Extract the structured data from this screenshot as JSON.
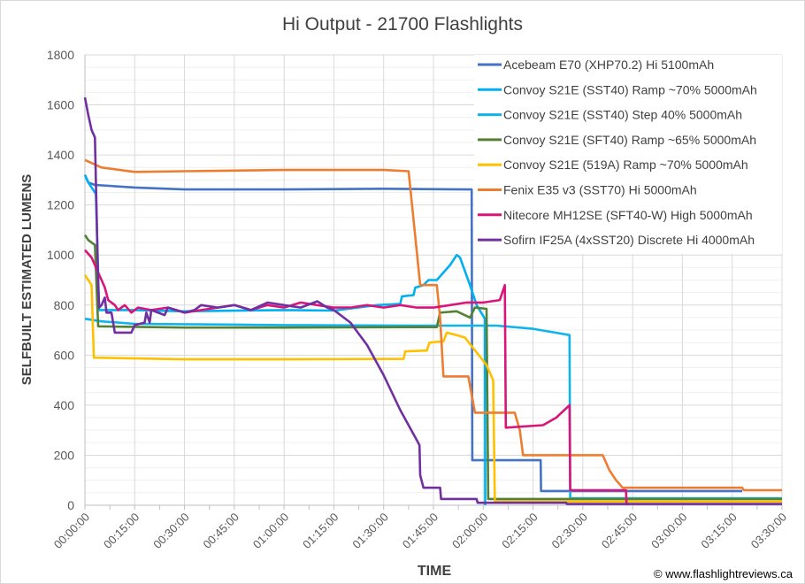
{
  "chart_data": {
    "type": "line",
    "title": "Hi Output - 21700 Flashlights",
    "xlabel": "TIME",
    "ylabel": "SELFBUILT ESTIMATED LUMENS",
    "x_unit": "minutes",
    "xlim": [
      0,
      210
    ],
    "ylim": [
      0,
      1800
    ],
    "y_ticks": [
      0,
      200,
      400,
      600,
      800,
      1000,
      1200,
      1400,
      1600,
      1800
    ],
    "x_tick_values": [
      0,
      15,
      30,
      45,
      60,
      75,
      90,
      105,
      120,
      135,
      150,
      165,
      180,
      195,
      210
    ],
    "x_tick_labels": [
      "00:00:00",
      "00:15:00",
      "00:30:00",
      "00:45:00",
      "01:00:00",
      "01:15:00",
      "01:30:00",
      "01:45:00",
      "02:00:00",
      "02:15:00",
      "02:30:00",
      "02:45:00",
      "03:00:00",
      "03:15:00",
      "03:30:00"
    ],
    "grid": true,
    "legend_position": "top-right",
    "credit": "© www.flashlightreviews.ca",
    "series": [
      {
        "name": "Acebeam E70 (XHP70.2) Hi 5100mAh",
        "color": "#4472C4",
        "points": [
          [
            0,
            1320
          ],
          [
            1,
            1290
          ],
          [
            3,
            1280
          ],
          [
            15,
            1270
          ],
          [
            30,
            1262
          ],
          [
            60,
            1262
          ],
          [
            90,
            1265
          ],
          [
            116.5,
            1262
          ],
          [
            116.7,
            180
          ],
          [
            137.3,
            180
          ],
          [
            137.4,
            57
          ],
          [
            198,
            57
          ]
        ]
      },
      {
        "name": "Convoy S21E (SST40) Ramp ~70% 5000mAh",
        "color": "#00B0F0",
        "points": [
          [
            0,
            1320
          ],
          [
            1,
            1290
          ],
          [
            3,
            1250
          ],
          [
            3.3,
            1245
          ],
          [
            4.3,
            780
          ],
          [
            15,
            780
          ],
          [
            30,
            775
          ],
          [
            60,
            780
          ],
          [
            75,
            778
          ],
          [
            88,
            800
          ],
          [
            95,
            805
          ],
          [
            95.5,
            835
          ],
          [
            99,
            840
          ],
          [
            99.5,
            870
          ],
          [
            102,
            880
          ],
          [
            103.5,
            900
          ],
          [
            106,
            900
          ],
          [
            108,
            930
          ],
          [
            110,
            960
          ],
          [
            112,
            1000
          ],
          [
            113,
            990
          ],
          [
            116,
            880
          ],
          [
            118,
            800
          ],
          [
            120.5,
            745
          ],
          [
            120.6,
            0
          ]
        ]
      },
      {
        "name": "Convoy S21E (SST40) Step 40% 5000mAh",
        "color": "#0FB4EC",
        "points": [
          [
            0,
            745
          ],
          [
            5,
            735
          ],
          [
            15,
            725
          ],
          [
            60,
            720
          ],
          [
            100,
            718
          ],
          [
            124,
            718
          ],
          [
            135,
            705
          ],
          [
            146,
            680
          ],
          [
            146.2,
            28
          ],
          [
            210,
            28
          ]
        ]
      },
      {
        "name": "Convoy S21E (SFT40) Ramp ~65% 5000mAh",
        "color": "#548235",
        "points": [
          [
            0,
            1080
          ],
          [
            1,
            1060
          ],
          [
            3,
            1040
          ],
          [
            4,
            715
          ],
          [
            30,
            710
          ],
          [
            60,
            710
          ],
          [
            100,
            712
          ],
          [
            106,
            712
          ],
          [
            107,
            770
          ],
          [
            112,
            775
          ],
          [
            116,
            750
          ],
          [
            117.5,
            790
          ],
          [
            121,
            785
          ],
          [
            121.5,
            25
          ],
          [
            210,
            25
          ]
        ]
      },
      {
        "name": "Convoy S21E (519A) Ramp ~70% 5000mAh",
        "color": "#FFC000",
        "points": [
          [
            0,
            920
          ],
          [
            1,
            900
          ],
          [
            2,
            880
          ],
          [
            2.7,
            590
          ],
          [
            30,
            583
          ],
          [
            60,
            583
          ],
          [
            96,
            585
          ],
          [
            96.5,
            615
          ],
          [
            103,
            618
          ],
          [
            103.8,
            650
          ],
          [
            108,
            655
          ],
          [
            109,
            690
          ],
          [
            112,
            680
          ],
          [
            114.5,
            670
          ],
          [
            121,
            560
          ],
          [
            123,
            500
          ],
          [
            123.5,
            15
          ],
          [
            210,
            15
          ]
        ]
      },
      {
        "name": "Fenix E35 v3 (SST70) Hi 5000mAh",
        "color": "#ED7D31",
        "points": [
          [
            0,
            1380
          ],
          [
            5,
            1350
          ],
          [
            15,
            1332
          ],
          [
            30,
            1335
          ],
          [
            60,
            1340
          ],
          [
            90,
            1340
          ],
          [
            97.5,
            1335
          ],
          [
            101,
            880
          ],
          [
            106,
            880
          ],
          [
            107,
            750
          ],
          [
            108,
            515
          ],
          [
            115.5,
            515
          ],
          [
            117.5,
            370
          ],
          [
            129.5,
            370
          ],
          [
            131,
            300
          ],
          [
            132,
            200
          ],
          [
            156,
            200
          ],
          [
            158,
            140
          ],
          [
            160,
            100
          ],
          [
            162,
            70
          ],
          [
            198,
            70
          ],
          [
            198.5,
            60
          ],
          [
            210,
            60
          ]
        ]
      },
      {
        "name": "Nitecore MH12SE (SFT40-W) High 5000mAh",
        "color": "#D9157A",
        "points": [
          [
            0,
            1020
          ],
          [
            2,
            990
          ],
          [
            4,
            930
          ],
          [
            5,
            900
          ],
          [
            6,
            870
          ],
          [
            7,
            820
          ],
          [
            9,
            800
          ],
          [
            10,
            780
          ],
          [
            12,
            800
          ],
          [
            14,
            770
          ],
          [
            16,
            790
          ],
          [
            20,
            780
          ],
          [
            25,
            790
          ],
          [
            30,
            770
          ],
          [
            35,
            780
          ],
          [
            40,
            790
          ],
          [
            45,
            800
          ],
          [
            50,
            780
          ],
          [
            55,
            800
          ],
          [
            60,
            790
          ],
          [
            65,
            810
          ],
          [
            70,
            800
          ],
          [
            75,
            790
          ],
          [
            80,
            790
          ],
          [
            85,
            800
          ],
          [
            90,
            790
          ],
          [
            95,
            800
          ],
          [
            100,
            790
          ],
          [
            105,
            790
          ],
          [
            110,
            800
          ],
          [
            115,
            810
          ],
          [
            120,
            810
          ],
          [
            125,
            820
          ],
          [
            126.5,
            880
          ],
          [
            126.8,
            310
          ],
          [
            138,
            320
          ],
          [
            142,
            350
          ],
          [
            146,
            400
          ],
          [
            146.2,
            60
          ],
          [
            163,
            60
          ],
          [
            163.2,
            0
          ]
        ]
      },
      {
        "name": "Sofirn IF25A (4xSST20) Discrete Hi 4000mAh",
        "color": "#7030A0",
        "points": [
          [
            0,
            1630
          ],
          [
            1,
            1560
          ],
          [
            2,
            1500
          ],
          [
            3,
            1470
          ],
          [
            4,
            880
          ],
          [
            4.3,
            790
          ],
          [
            5,
            800
          ],
          [
            6,
            830
          ],
          [
            6.5,
            770
          ],
          [
            8,
            770
          ],
          [
            9,
            690
          ],
          [
            14,
            690
          ],
          [
            15,
            720
          ],
          [
            18,
            730
          ],
          [
            18.5,
            770
          ],
          [
            19.5,
            730
          ],
          [
            20,
            780
          ],
          [
            24,
            760
          ],
          [
            25,
            790
          ],
          [
            30,
            770
          ],
          [
            33,
            780
          ],
          [
            35,
            800
          ],
          [
            40,
            790
          ],
          [
            45,
            800
          ],
          [
            50,
            780
          ],
          [
            55,
            810
          ],
          [
            60,
            800
          ],
          [
            65,
            790
          ],
          [
            70,
            815
          ],
          [
            73,
            790
          ],
          [
            75,
            780
          ],
          [
            80,
            730
          ],
          [
            85,
            640
          ],
          [
            90,
            520
          ],
          [
            95,
            380
          ],
          [
            100,
            260
          ],
          [
            100.8,
            240
          ],
          [
            101,
            120
          ],
          [
            102,
            70
          ],
          [
            107,
            70
          ],
          [
            107.3,
            25
          ],
          [
            118,
            25
          ],
          [
            118.3,
            10
          ],
          [
            145,
            10
          ],
          [
            145.2,
            5
          ],
          [
            210,
            5
          ]
        ]
      }
    ]
  }
}
